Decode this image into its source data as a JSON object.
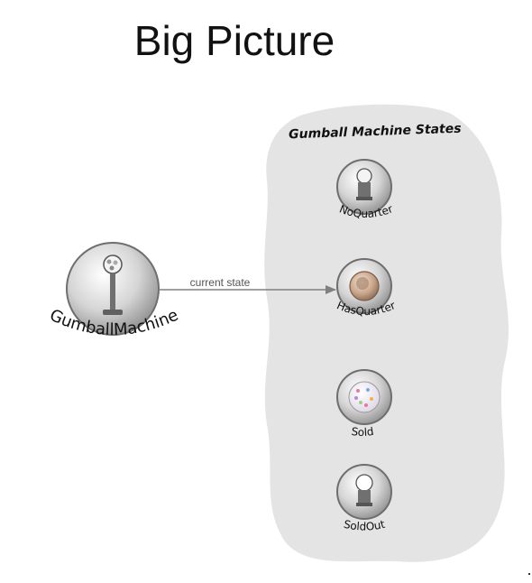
{
  "title": "Big Picture",
  "states_heading": "Gumball Machine States",
  "context": {
    "label": "GumballMachine",
    "icon": "gumball-machine-icon"
  },
  "arrow_label": "current state",
  "states": [
    {
      "label": "NoQuarter",
      "icon": "gumball-machine-icon"
    },
    {
      "label": "HasQuarter",
      "icon": "quarter-coin-icon"
    },
    {
      "label": "Sold",
      "icon": "gumball-icon"
    },
    {
      "label": "SoldOut",
      "icon": "empty-gumball-machine-icon"
    }
  ],
  "colors": {
    "blob": "#e4e4e4",
    "arrow": "#808080",
    "text": "#111111",
    "coin": "#c9a58a"
  }
}
